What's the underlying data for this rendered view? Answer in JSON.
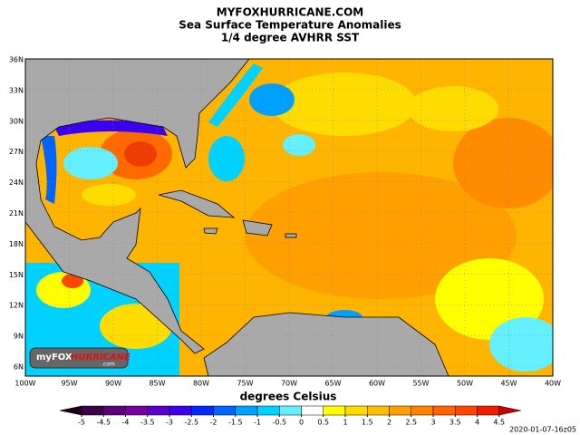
{
  "header": {
    "lines": [
      "MYFOXHURRICANE.COM",
      "Sea Surface Temperature Anomalies",
      "1/4 degree AVHRR SST"
    ]
  },
  "map": {
    "lat_labels": [
      "36N",
      "33N",
      "30N",
      "27N",
      "24N",
      "21N",
      "18N",
      "15N",
      "12N",
      "9N",
      "6N"
    ],
    "lon_labels": [
      "100W",
      "95W",
      "90W",
      "85W",
      "80W",
      "75W",
      "70W",
      "65W",
      "60W",
      "55W",
      "50W",
      "45W",
      "40W"
    ]
  },
  "logo": {
    "brand": "myFOX",
    "name": "HURRICANE",
    "suffix": ".com"
  },
  "colorbar": {
    "label": "degrees Celsius",
    "ticks": [
      -5,
      -4.5,
      -4,
      -3.5,
      -3,
      -2.5,
      -2,
      -1.5,
      -1,
      -0.5,
      0,
      0.5,
      1,
      1.5,
      2,
      2.5,
      3,
      3.5,
      4,
      4.5
    ],
    "colors": [
      "#1a001a",
      "#3c0046",
      "#5a0078",
      "#7800a0",
      "#5a00c8",
      "#3c00f0",
      "#0028ff",
      "#0064ff",
      "#00a0ff",
      "#00d2ff",
      "#64f0ff",
      "#ffffff",
      "#ffff00",
      "#ffdc00",
      "#ffbe00",
      "#ffa000",
      "#ff8200",
      "#ff6400",
      "#ff4600",
      "#f01e00",
      "#c80000"
    ]
  },
  "timestamp": "2020-01-07-16z05"
}
